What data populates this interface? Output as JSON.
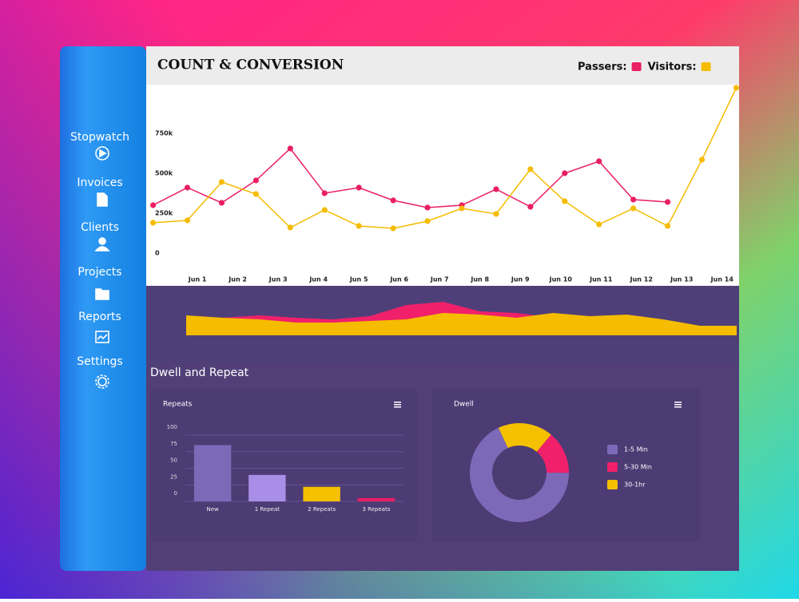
{
  "sidebar": {
    "items": [
      "Stopwatch",
      "Invoices",
      "Clients",
      "Projects",
      "Reports",
      "Settings"
    ]
  },
  "section_title": "Dwell and Repeat",
  "chart_data": [
    {
      "type": "line",
      "title": "COUNT & CONVERSION",
      "x": [
        -0.1,
        0.75,
        1.6,
        2.45,
        3.3,
        4.15,
        5,
        5.85,
        6.7,
        7.55,
        8.4,
        9.25,
        10.1,
        10.95,
        11.8,
        12.65,
        13.5,
        14.35
      ],
      "xlim": [
        -0.25,
        14.4
      ],
      "xticks": [
        {
          "value": 1,
          "label": "Jun 1"
        },
        {
          "value": 2,
          "label": "Jun 2"
        },
        {
          "value": 3,
          "label": "Jun 3"
        },
        {
          "value": 4,
          "label": "Jun 4"
        },
        {
          "value": 5,
          "label": "Jun 5"
        },
        {
          "value": 6,
          "label": "Jun 6"
        },
        {
          "value": 7,
          "label": "Jun 7"
        },
        {
          "value": 8,
          "label": "Jun 8"
        },
        {
          "value": 9,
          "label": "Jun 9"
        },
        {
          "value": 10,
          "label": "Jun 10"
        },
        {
          "value": 11,
          "label": "Jun 11"
        },
        {
          "value": 12,
          "label": "Jun 12"
        },
        {
          "value": 13,
          "label": "Jun 13"
        },
        {
          "value": 14,
          "label": "Jun 14"
        }
      ],
      "ylim": [
        -100000,
        1050000
      ],
      "yticks": [
        0,
        {
          "value": 250000,
          "label": "250k"
        },
        {
          "value": 500000,
          "label": "500k"
        },
        {
          "value": 750000,
          "label": "750k"
        }
      ],
      "legend": "top-right",
      "series": [
        {
          "name": "Passers:",
          "color": "#e91e63",
          "values": [
            300000,
            410000,
            315000,
            455000,
            655000,
            375000,
            410000,
            330000,
            285000,
            300000,
            400000,
            290000,
            500000,
            575000,
            335000,
            320000,
            null,
            null
          ]
        },
        {
          "name": "Visitors:",
          "color": "#f5bc00",
          "values": [
            190000,
            205000,
            445000,
            370000,
            160000,
            270000,
            170000,
            155000,
            200000,
            280000,
            245000,
            525000,
            325000,
            180000,
            280000,
            170000,
            585000,
            1035000
          ]
        }
      ]
    },
    {
      "type": "area",
      "x": [
        0,
        1,
        2,
        3,
        4,
        5,
        6,
        7,
        8,
        9,
        10,
        11,
        12,
        13,
        14,
        15
      ],
      "xlim": [
        0,
        15
      ],
      "ylim": [
        0,
        60
      ],
      "series": [
        {
          "color": "#f0206a",
          "values": [
            20,
            22,
            25,
            22,
            20,
            24,
            38,
            42,
            30,
            28,
            22,
            18,
            16,
            10,
            8,
            6
          ]
        },
        {
          "color": "#f5bc00",
          "values": [
            25,
            22,
            20,
            16,
            16,
            18,
            20,
            28,
            26,
            22,
            28,
            24,
            26,
            20,
            12,
            12
          ]
        }
      ]
    },
    {
      "type": "bar",
      "title": "Repeats",
      "categories": [
        "New",
        "1 Repeat",
        "2 Repeats",
        "3 Repeats"
      ],
      "values": [
        85,
        40,
        22,
        5
      ],
      "colors": [
        "#7e69b8",
        "#a98ee8",
        "#f5c000",
        "#e91e63"
      ],
      "ylim": [
        0,
        100
      ],
      "yticks": [
        0,
        25,
        50,
        75,
        100
      ],
      "grid": true
    },
    {
      "type": "pie",
      "title": "Dwell",
      "donut": true,
      "categories": [
        "1-5 Min",
        "5-30 Min",
        "30-1hr"
      ],
      "values": [
        68,
        14,
        18
      ],
      "colors": [
        "#7e69b8",
        "#f0206a",
        "#f5c000"
      ]
    }
  ]
}
